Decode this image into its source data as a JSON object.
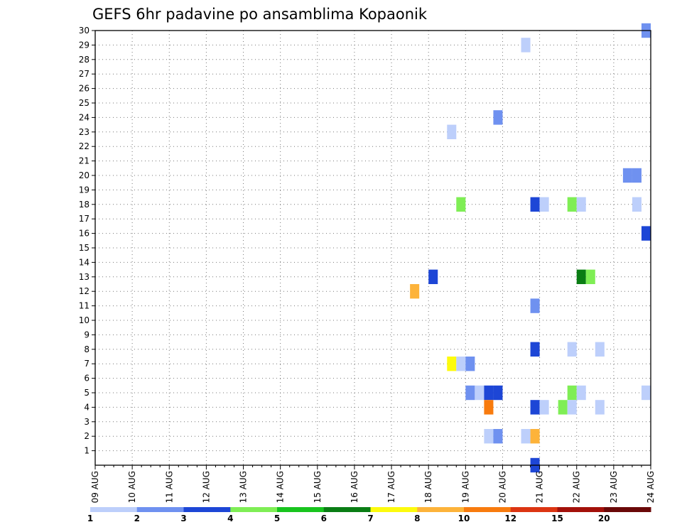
{
  "chart_data": {
    "type": "heatmap",
    "title": "GEFS 6hr padavine po ansamblima Kopaonik",
    "x_ticks": [
      "09 AUG",
      "10 AUG",
      "11 AUG",
      "12 AUG",
      "13 AUG",
      "14 AUG",
      "15 AUG",
      "16 AUG",
      "17 AUG",
      "18 AUG",
      "19 AUG",
      "20 AUG",
      "21 AUG",
      "22 AUG",
      "23 AUG",
      "24 AUG"
    ],
    "x_range": [
      "2018-08-09 00Z",
      "2018-08-24 00Z"
    ],
    "x_step_hours": 6,
    "y_ticks": [
      1,
      2,
      3,
      4,
      5,
      6,
      7,
      8,
      9,
      10,
      11,
      12,
      13,
      14,
      15,
      16,
      17,
      18,
      19,
      20,
      21,
      22,
      23,
      24,
      25,
      26,
      27,
      28,
      29,
      30
    ],
    "y_range": [
      0,
      30
    ],
    "grid": true,
    "color_levels": [
      1,
      2,
      3,
      4,
      5,
      6,
      7,
      8,
      10,
      12,
      15,
      20
    ],
    "level_labels": [
      "1",
      "2",
      "3",
      "4",
      "5",
      "6",
      "7",
      "8",
      "10",
      "12",
      "15",
      "20"
    ],
    "colors": [
      "#bdcffb",
      "#6f91f0",
      "#1d46d6",
      "#7fee55",
      "#18c41e",
      "#0a7d14",
      "#fdfb0d",
      "#fdb33a",
      "#f87b0e",
      "#dc3512",
      "#a3100a",
      "#6a0808"
    ],
    "cells": [
      {
        "x": "2018-08-17 12Z",
        "y": 12,
        "color": "#fdb33a"
      },
      {
        "x": "2018-08-18 00Z",
        "y": 13,
        "color": "#1d46d6"
      },
      {
        "x": "2018-08-18 12Z",
        "y": 23,
        "color": "#bdcffb"
      },
      {
        "x": "2018-08-18 12Z",
        "y": 7,
        "color": "#fdfb0d"
      },
      {
        "x": "2018-08-18 18Z",
        "y": 18,
        "color": "#7fee55"
      },
      {
        "x": "2018-08-18 18Z",
        "y": 7,
        "color": "#bdcffb"
      },
      {
        "x": "2018-08-19 00Z",
        "y": 7,
        "color": "#6f91f0"
      },
      {
        "x": "2018-08-19 00Z",
        "y": 5,
        "color": "#6f91f0"
      },
      {
        "x": "2018-08-19 06Z",
        "y": 5,
        "color": "#bdcffb"
      },
      {
        "x": "2018-08-19 12Z",
        "y": 5,
        "color": "#1d46d6"
      },
      {
        "x": "2018-08-19 12Z",
        "y": 4,
        "color": "#f87b0e"
      },
      {
        "x": "2018-08-19 12Z",
        "y": 2,
        "color": "#bdcffb"
      },
      {
        "x": "2018-08-19 18Z",
        "y": 24,
        "color": "#6f91f0"
      },
      {
        "x": "2018-08-19 18Z",
        "y": 5,
        "color": "#1d46d6"
      },
      {
        "x": "2018-08-19 18Z",
        "y": 2,
        "color": "#6f91f0"
      },
      {
        "x": "2018-08-20 12Z",
        "y": 29,
        "color": "#bdcffb"
      },
      {
        "x": "2018-08-20 12Z",
        "y": 2,
        "color": "#bdcffb"
      },
      {
        "x": "2018-08-20 18Z",
        "y": 18,
        "color": "#1d46d6"
      },
      {
        "x": "2018-08-20 18Z",
        "y": 11,
        "color": "#6f91f0"
      },
      {
        "x": "2018-08-20 18Z",
        "y": 8,
        "color": "#1d46d6"
      },
      {
        "x": "2018-08-20 18Z",
        "y": 4,
        "color": "#1d46d6"
      },
      {
        "x": "2018-08-20 18Z",
        "y": 2,
        "color": "#fdb33a"
      },
      {
        "x": "2018-08-20 18Z",
        "y": 0,
        "color": "#1d46d6"
      },
      {
        "x": "2018-08-21 00Z",
        "y": 18,
        "color": "#bdcffb"
      },
      {
        "x": "2018-08-21 00Z",
        "y": 4,
        "color": "#bdcffb"
      },
      {
        "x": "2018-08-21 12Z",
        "y": 4,
        "color": "#7fee55"
      },
      {
        "x": "2018-08-21 18Z",
        "y": 18,
        "color": "#7fee55"
      },
      {
        "x": "2018-08-21 18Z",
        "y": 8,
        "color": "#bdcffb"
      },
      {
        "x": "2018-08-21 18Z",
        "y": 5,
        "color": "#7fee55"
      },
      {
        "x": "2018-08-21 18Z",
        "y": 4,
        "color": "#bdcffb"
      },
      {
        "x": "2018-08-22 00Z",
        "y": 18,
        "color": "#bdcffb"
      },
      {
        "x": "2018-08-22 00Z",
        "y": 13,
        "color": "#0a7d14"
      },
      {
        "x": "2018-08-22 00Z",
        "y": 5,
        "color": "#bdcffb"
      },
      {
        "x": "2018-08-22 06Z",
        "y": 13,
        "color": "#7fee55"
      },
      {
        "x": "2018-08-22 12Z",
        "y": 8,
        "color": "#bdcffb"
      },
      {
        "x": "2018-08-22 12Z",
        "y": 4,
        "color": "#bdcffb"
      },
      {
        "x": "2018-08-23 06Z",
        "y": 20,
        "color": "#6f91f0"
      },
      {
        "x": "2018-08-23 12Z",
        "y": 20,
        "color": "#6f91f0"
      },
      {
        "x": "2018-08-23 12Z",
        "y": 18,
        "color": "#bdcffb"
      },
      {
        "x": "2018-08-23 18Z",
        "y": 30,
        "color": "#6f91f0"
      },
      {
        "x": "2018-08-23 18Z",
        "y": 16,
        "color": "#1d46d6"
      },
      {
        "x": "2018-08-23 18Z",
        "y": 5,
        "color": "#bdcffb"
      }
    ]
  }
}
